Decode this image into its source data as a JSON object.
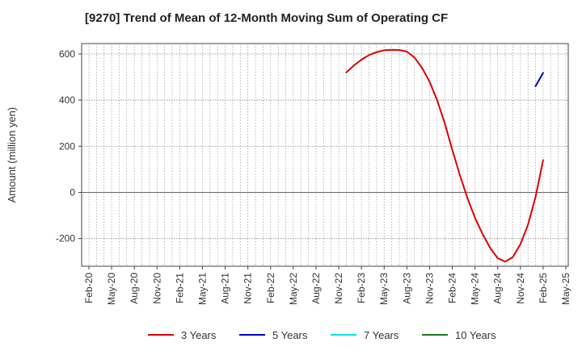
{
  "chart_data": {
    "type": "line",
    "title": "[9270]  Trend of Mean of 12-Month Moving Sum of Operating CF",
    "ylabel": "Amount (million yen)",
    "xlabel": "",
    "ylim": [
      -320,
      645
    ],
    "yticks": [
      600,
      400,
      200,
      0,
      -200
    ],
    "x_tick_labels": [
      "Feb-20",
      "May-20",
      "Aug-20",
      "Nov-20",
      "Feb-21",
      "May-21",
      "Aug-21",
      "Nov-21",
      "Feb-22",
      "May-22",
      "Aug-22",
      "Nov-22",
      "Feb-23",
      "May-23",
      "Aug-23",
      "Nov-23",
      "Feb-24",
      "May-24",
      "Aug-24",
      "Nov-24",
      "Feb-25",
      "May-25"
    ],
    "grid": true,
    "legend_position": "bottom",
    "series": [
      {
        "name": "3 Years",
        "color": "#dd0000",
        "points": [
          [
            "Dec-22",
            520
          ],
          [
            "Jan-23",
            550
          ],
          [
            "Feb-23",
            575
          ],
          [
            "Mar-23",
            595
          ],
          [
            "Apr-23",
            608
          ],
          [
            "May-23",
            616
          ],
          [
            "Jun-23",
            618
          ],
          [
            "Jul-23",
            617
          ],
          [
            "Aug-23",
            610
          ],
          [
            "Sep-23",
            585
          ],
          [
            "Oct-23",
            540
          ],
          [
            "Nov-23",
            480
          ],
          [
            "Dec-23",
            400
          ],
          [
            "Jan-24",
            300
          ],
          [
            "Feb-24",
            185
          ],
          [
            "Mar-24",
            75
          ],
          [
            "Apr-24",
            -25
          ],
          [
            "May-24",
            -110
          ],
          [
            "Jun-24",
            -180
          ],
          [
            "Jul-24",
            -240
          ],
          [
            "Aug-24",
            -285
          ],
          [
            "Sep-24",
            -300
          ],
          [
            "Oct-24",
            -280
          ],
          [
            "Nov-24",
            -225
          ],
          [
            "Dec-24",
            -140
          ],
          [
            "Jan-25",
            -20
          ],
          [
            "Feb-25",
            140
          ]
        ]
      },
      {
        "name": "5 Years",
        "color": "#0000cc",
        "points": [
          [
            "Jan-25",
            460
          ],
          [
            "Feb-25",
            518
          ]
        ]
      },
      {
        "name": "7 Years",
        "color": "#00e5ee",
        "points": []
      },
      {
        "name": "10 Years",
        "color": "#1a7a1a",
        "points": []
      }
    ]
  }
}
